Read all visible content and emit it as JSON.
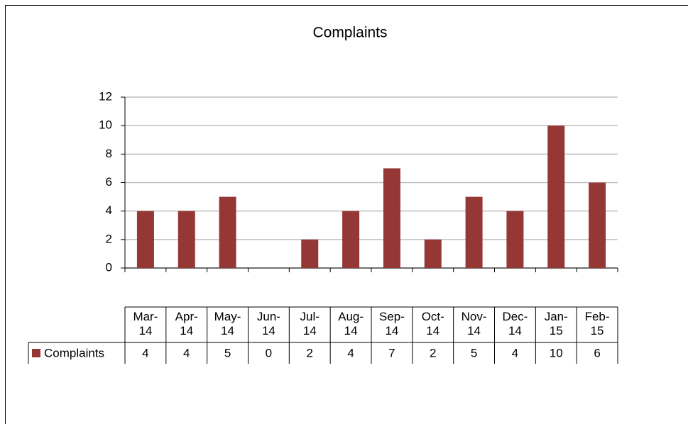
{
  "chart_data": {
    "type": "bar",
    "title": "Complaints",
    "categories": [
      "Mar-14",
      "Apr-14",
      "May-14",
      "Jun-14",
      "Jul-14",
      "Aug-14",
      "Sep-14",
      "Oct-14",
      "Nov-14",
      "Dec-14",
      "Jan-15",
      "Feb-15"
    ],
    "series": [
      {
        "name": "Complaints",
        "color": "#953735",
        "values": [
          4,
          4,
          5,
          0,
          2,
          4,
          7,
          2,
          5,
          4,
          10,
          6
        ]
      }
    ],
    "ylim": [
      0,
      12
    ],
    "yticks": [
      0,
      2,
      4,
      6,
      8,
      10,
      12
    ],
    "grid": true,
    "data_table": true
  }
}
